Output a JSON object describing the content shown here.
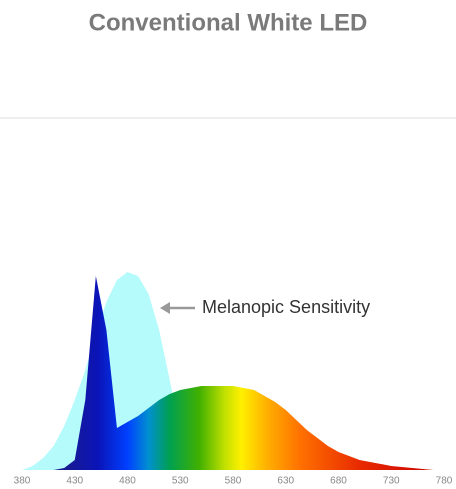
{
  "chart_data": {
    "type": "area",
    "title": "Conventional White LED",
    "annotation": "Melanopic Sensitivity",
    "x": [
      380,
      390,
      400,
      410,
      420,
      430,
      440,
      450,
      460,
      470,
      480,
      490,
      500,
      510,
      520,
      530,
      540,
      550,
      560,
      570,
      580,
      590,
      600,
      610,
      620,
      630,
      640,
      650,
      660,
      670,
      680,
      690,
      700,
      710,
      720,
      730,
      740,
      750,
      760,
      770,
      780
    ],
    "series": [
      {
        "name": "Melanopic Sensitivity",
        "color": "#b5fbfb",
        "values": [
          0,
          0.02,
          0.06,
          0.12,
          0.22,
          0.35,
          0.5,
          0.68,
          0.84,
          0.95,
          0.99,
          0.97,
          0.88,
          0.7,
          0.45,
          0.2,
          0.05,
          0.01,
          0,
          0,
          0,
          0,
          0,
          0,
          0,
          0,
          0,
          0,
          0,
          0,
          0,
          0,
          0,
          0,
          0,
          0,
          0,
          0,
          0,
          0,
          0
        ]
      },
      {
        "values": [
          0,
          0,
          0,
          0,
          0.01,
          0.05,
          0.35,
          0.97,
          0.7,
          0.21,
          0.24,
          0.27,
          0.31,
          0.35,
          0.38,
          0.4,
          0.41,
          0.42,
          0.42,
          0.42,
          0.42,
          0.41,
          0.4,
          0.37,
          0.34,
          0.3,
          0.25,
          0.2,
          0.16,
          0.12,
          0.09,
          0.07,
          0.05,
          0.04,
          0.03,
          0.02,
          0.015,
          0.01,
          0.005,
          0,
          0
        ]
      }
    ],
    "xlim": [
      380,
      780
    ],
    "xticks": [
      380,
      430,
      480,
      530,
      580,
      630,
      680,
      730,
      780
    ],
    "ylim": [
      0,
      1
    ]
  }
}
